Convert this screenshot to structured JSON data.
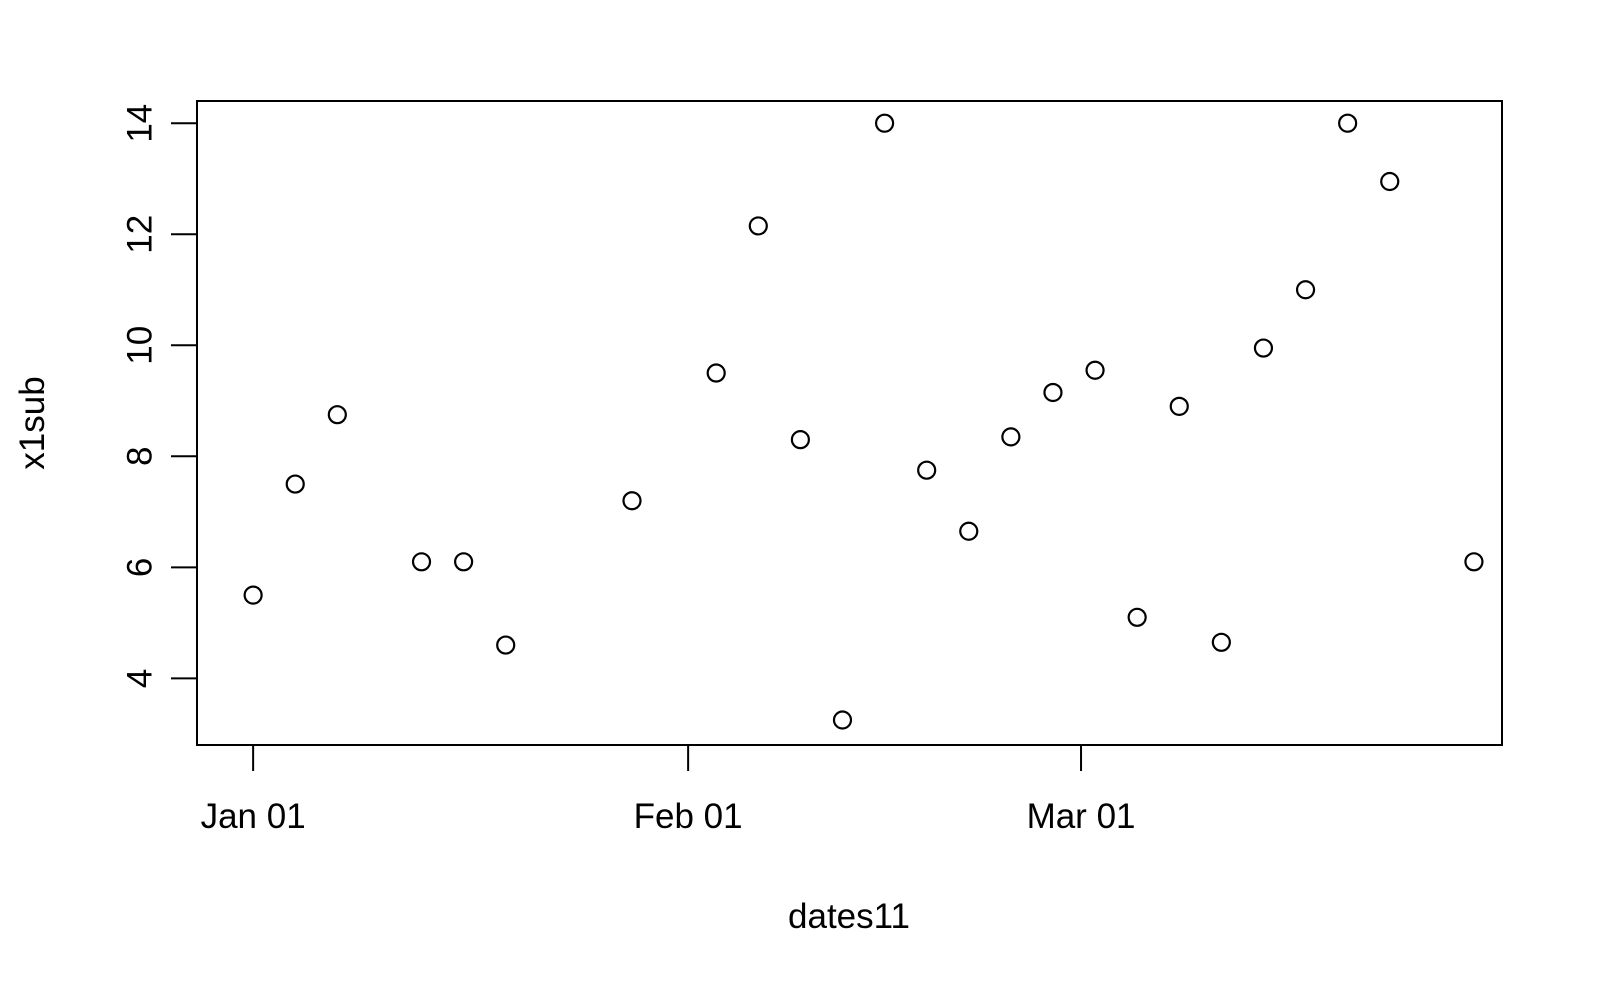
{
  "chart_data": {
    "type": "scatter",
    "xlabel": "dates11",
    "ylabel": "x1sub",
    "x_ticks": [
      {
        "date": "2011-01-01",
        "label": "Jan 01"
      },
      {
        "date": "2011-02-01",
        "label": "Feb 01"
      },
      {
        "date": "2011-03-01",
        "label": "Mar 01"
      }
    ],
    "y_ticks": [
      4,
      6,
      8,
      10,
      12,
      14
    ],
    "xlim": [
      "2010-12-28",
      "2011-03-31"
    ],
    "ylim": [
      2.8,
      14.4
    ],
    "grid": false,
    "legend": "none",
    "marker": "open-circle",
    "color": "#000000",
    "points": [
      {
        "x": "2011-01-01",
        "y": 5.5
      },
      {
        "x": "2011-01-04",
        "y": 7.5
      },
      {
        "x": "2011-01-07",
        "y": 8.75
      },
      {
        "x": "2011-01-13",
        "y": 6.1
      },
      {
        "x": "2011-01-16",
        "y": 6.1
      },
      {
        "x": "2011-01-19",
        "y": 4.6
      },
      {
        "x": "2011-01-28",
        "y": 7.2
      },
      {
        "x": "2011-02-03",
        "y": 9.5
      },
      {
        "x": "2011-02-06",
        "y": 12.15
      },
      {
        "x": "2011-02-09",
        "y": 8.3
      },
      {
        "x": "2011-02-12",
        "y": 3.25
      },
      {
        "x": "2011-02-15",
        "y": 14.0
      },
      {
        "x": "2011-02-18",
        "y": 7.75
      },
      {
        "x": "2011-02-21",
        "y": 6.65
      },
      {
        "x": "2011-02-24",
        "y": 8.35
      },
      {
        "x": "2011-02-27",
        "y": 9.15
      },
      {
        "x": "2011-03-02",
        "y": 9.55
      },
      {
        "x": "2011-03-05",
        "y": 5.1
      },
      {
        "x": "2011-03-08",
        "y": 8.9
      },
      {
        "x": "2011-03-11",
        "y": 4.65
      },
      {
        "x": "2011-03-14",
        "y": 9.95
      },
      {
        "x": "2011-03-17",
        "y": 11.0
      },
      {
        "x": "2011-03-20",
        "y": 14.0
      },
      {
        "x": "2011-03-23",
        "y": 12.95
      },
      {
        "x": "2011-03-29",
        "y": 6.1
      }
    ]
  }
}
